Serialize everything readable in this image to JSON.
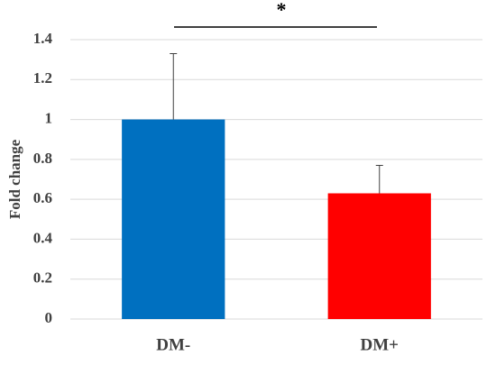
{
  "chart_data": {
    "type": "bar",
    "y_label": "Fold change",
    "annotation": "*",
    "categories": [
      "DM-",
      "DM+"
    ],
    "values": [
      1,
      0.63
    ],
    "errors": [
      0.33,
      0.14
    ],
    "colors": [
      "#0070c0",
      "#ff0000"
    ],
    "ylim": [
      0,
      1.4
    ],
    "yticks": [
      0,
      0.2,
      0.4,
      0.6,
      0.8,
      1,
      1.2,
      1.4
    ],
    "grid": true
  }
}
